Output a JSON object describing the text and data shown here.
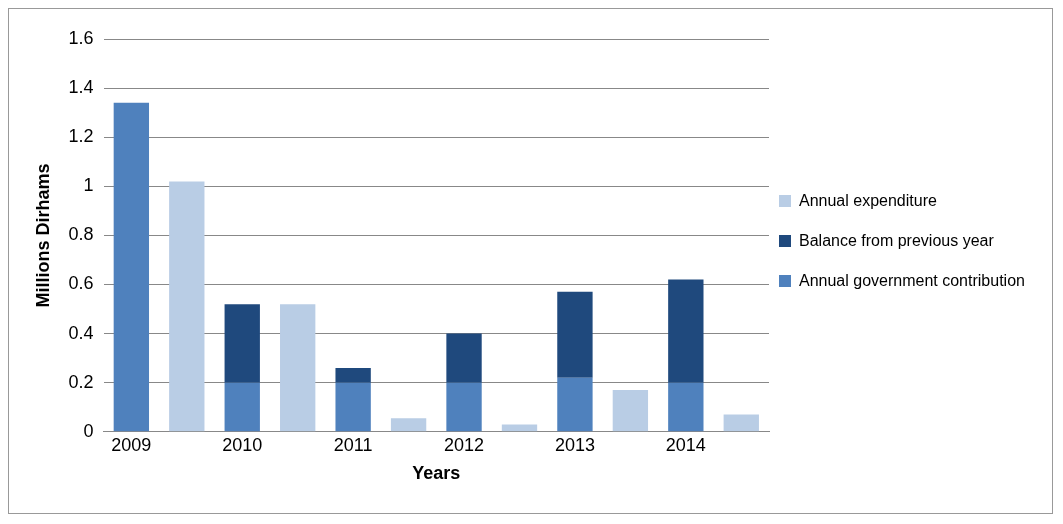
{
  "chart_data": {
    "type": "bar",
    "stacked": true,
    "xlabel": "Years",
    "ylabel": "Millions Dirhams",
    "categories": [
      "2009",
      null,
      "2010",
      null,
      "2011",
      null,
      "2012",
      null,
      "2013",
      null,
      "2014",
      null
    ],
    "series": [
      {
        "name": "Annual government contribution",
        "color": "#4f81bd",
        "values": [
          1.34,
          null,
          0.2,
          null,
          0.2,
          null,
          0.2,
          null,
          0.22,
          null,
          0.2,
          null
        ]
      },
      {
        "name": "Balance from previous year",
        "color": "#1f497d",
        "values": [
          null,
          null,
          0.32,
          null,
          0.06,
          null,
          0.2,
          null,
          0.35,
          null,
          0.42,
          null
        ]
      },
      {
        "name": "Annual expenditure",
        "color": "#b9cde5",
        "values": [
          null,
          1.02,
          null,
          0.52,
          null,
          0.055,
          null,
          0.03,
          null,
          0.17,
          null,
          0.07
        ]
      }
    ],
    "ylim": [
      0,
      1.6
    ],
    "yticks": [
      0,
      0.2,
      0.4,
      0.6,
      0.8,
      1,
      1.2,
      1.4,
      1.6
    ],
    "grid": "y",
    "legend": "right"
  }
}
